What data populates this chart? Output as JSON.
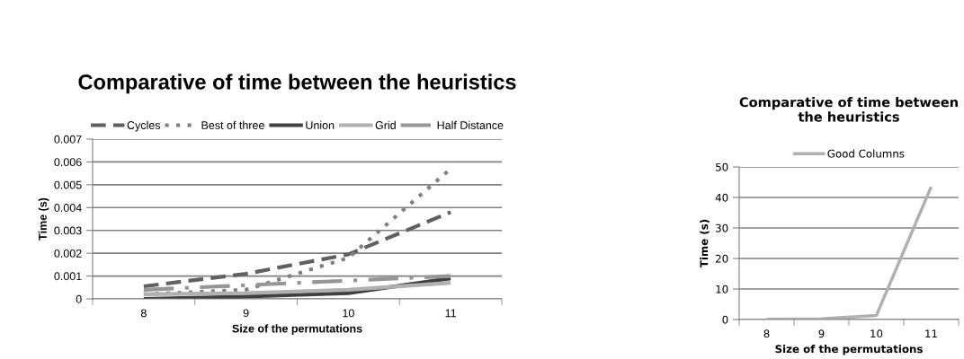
{
  "chart_data": [
    {
      "type": "line",
      "title": "Comparative of time between the heuristics",
      "xlabel": "Size of the permutations",
      "ylabel": "Time (s)",
      "categories": [
        "8",
        "9",
        "10",
        "11"
      ],
      "series": [
        {
          "name": "Cycles",
          "color": "#606060",
          "line_style": "dashed",
          "values": [
            0.00055,
            0.0011,
            0.00195,
            0.0038
          ]
        },
        {
          "name": "Best of three",
          "color": "#808080",
          "line_style": "dotted",
          "values": [
            0.0002,
            0.0004,
            0.0018,
            0.0057
          ]
        },
        {
          "name": "Union",
          "color": "#404040",
          "line_style": "solid",
          "values": [
            0,
            0.0001,
            0.00025,
            0.0009
          ]
        },
        {
          "name": "Grid",
          "color": "#b0b0b0",
          "line_style": "solid",
          "values": [
            0.0002,
            0.00025,
            0.0004,
            0.0007
          ]
        },
        {
          "name": "Half Distance",
          "color": "#969696",
          "line_style": "dashdot",
          "values": [
            0.0004,
            0.0006,
            0.0008,
            0.001
          ]
        }
      ],
      "ylim": [
        0,
        0.007
      ],
      "yticks": [
        0,
        0.001,
        0.002,
        0.003,
        0.004,
        0.005,
        0.006,
        0.007
      ],
      "grid": "y",
      "legend": "top"
    },
    {
      "type": "line",
      "title": "Comparative of time between the heuristics",
      "xlabel": "Size of the permutations",
      "ylabel": "Time (s)",
      "categories": [
        "8",
        "9",
        "10",
        "11"
      ],
      "series": [
        {
          "name": "Good Columns",
          "color": "#b0b0b0",
          "line_style": "solid",
          "values": [
            0.1,
            0.2,
            1.3,
            43.5
          ]
        }
      ],
      "ylim": [
        0,
        50
      ],
      "yticks": [
        0,
        10,
        20,
        30,
        40,
        50
      ],
      "grid": "y",
      "legend": "top"
    }
  ]
}
